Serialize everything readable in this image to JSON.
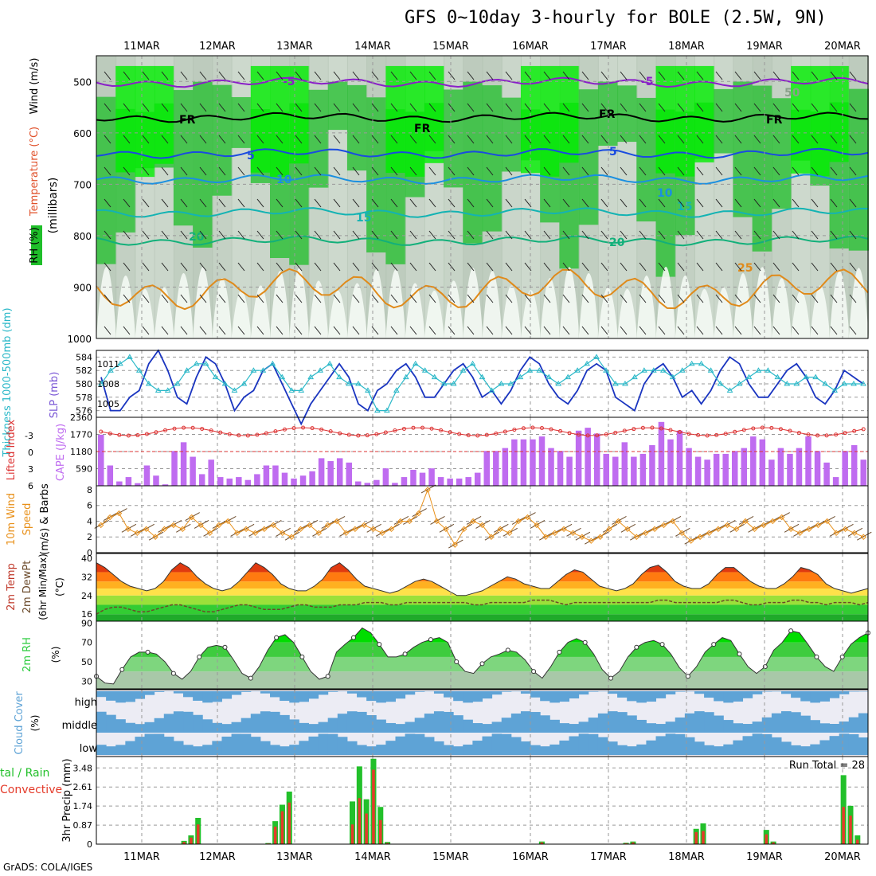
{
  "title": "GFS 0~10day 3-hourly for BOLE (2.5W, 9N)",
  "footer": "GrADS: COLA/IGES",
  "dates": [
    "11MAR",
    "12MAR",
    "13MAR",
    "14MAR",
    "15MAR",
    "16MAR",
    "17MAR",
    "18MAR",
    "19MAR",
    "20MAR"
  ],
  "colors": {
    "rh_green": "#1fbf2a",
    "rh_bright": "#00ee00",
    "rh_gray": "#b3c3b3",
    "cape": "#bf6cf0",
    "li": "#dd3333",
    "slp": "#1a35c0",
    "thick": "#2ab8c8",
    "wind": "#e8901a",
    "rh2m": "#2ecc40",
    "cloud": "#5ea3d6",
    "precip_total": "#22c02a",
    "precip_conv": "#e43b2a"
  },
  "chart_data": [
    {
      "type": "heatmap",
      "panel": "vertical-profile",
      "ylabel": "RH (%)  Temperature (°C)  Wind (m/s)",
      "yunit": "(millibars)",
      "yticks": [
        500,
        600,
        700,
        800,
        900,
        1000
      ],
      "ylim": [
        1000,
        450
      ],
      "isotherms": [
        {
          "label": "-5",
          "level_mb": 502
        },
        {
          "label": "FR",
          "level_mb": 570
        },
        {
          "label": "5",
          "level_mb": 640
        },
        {
          "label": "10",
          "level_mb": 690
        },
        {
          "label": "15",
          "level_mb": 755
        },
        {
          "label": "20",
          "level_mb": 810
        },
        {
          "label": "25",
          "level_mb": 905
        }
      ],
      "inline_labels": [
        "-5",
        "FR",
        "5",
        "10",
        "15",
        "20",
        "25",
        "50"
      ]
    },
    {
      "type": "line",
      "panel": "slp-thickness",
      "ylabel_left": "Thickness 1000-500mb (dm)",
      "ylabel_right": "SLP (mb)",
      "yticks_thickness": [
        576,
        578,
        580,
        582,
        584
      ],
      "yticks_slp": [
        1005,
        1008,
        1011
      ],
      "slp": [
        1009,
        1004,
        1004,
        1006,
        1007,
        1011,
        1013,
        1010,
        1006,
        1005,
        1009,
        1012,
        1011,
        1008,
        1004,
        1006,
        1007,
        1010,
        1011,
        1008,
        1005,
        1002,
        1005,
        1007,
        1009,
        1011,
        1009,
        1005,
        1004,
        1007,
        1008,
        1010,
        1011,
        1009,
        1006,
        1006,
        1008,
        1010,
        1011,
        1009,
        1006,
        1007,
        1005,
        1007,
        1010,
        1012,
        1011,
        1008,
        1006,
        1005,
        1007,
        1010,
        1011,
        1010,
        1006,
        1005,
        1004,
        1008,
        1010,
        1011,
        1009,
        1006,
        1007,
        1005,
        1007,
        1010,
        1012,
        1011,
        1008,
        1006,
        1006,
        1008,
        1010,
        1011,
        1009,
        1006,
        1005,
        1007,
        1010,
        1009,
        1008
      ],
      "thickness": [
        580,
        582,
        583,
        584,
        582,
        580,
        579,
        579,
        580,
        582,
        583,
        583,
        581,
        580,
        579,
        580,
        582,
        582,
        583,
        581,
        579,
        579,
        581,
        582,
        583,
        581,
        580,
        580,
        579,
        576,
        576,
        579,
        581,
        583,
        582,
        581,
        580,
        580,
        582,
        583,
        581,
        579,
        580,
        580,
        581,
        582,
        582,
        581,
        580,
        581,
        582,
        583,
        584,
        582,
        580,
        580,
        581,
        582,
        582,
        582,
        581,
        582,
        583,
        583,
        582,
        580,
        579,
        580,
        581,
        582,
        582,
        581,
        580,
        580,
        581,
        581,
        580,
        579,
        580,
        580,
        580
      ]
    },
    {
      "type": "bar",
      "panel": "lifted-index-cape",
      "ylabel_left": "Lifted Index",
      "ylabel_right": "CAPE (J/kg)",
      "yticks_li": [
        -3,
        0,
        3,
        6
      ],
      "yticks_cape": [
        590,
        1180,
        1770,
        2360
      ],
      "cape": [
        1760,
        700,
        150,
        300,
        90,
        700,
        350,
        50,
        1200,
        1500,
        1000,
        400,
        900,
        300,
        250,
        300,
        200,
        400,
        700,
        700,
        450,
        250,
        350,
        500,
        950,
        850,
        950,
        800,
        150,
        100,
        200,
        600,
        100,
        300,
        550,
        450,
        600,
        300,
        250,
        250,
        300,
        450,
        1200,
        1200,
        1300,
        1600,
        1600,
        1600,
        1700,
        1300,
        1200,
        1000,
        1900,
        2000,
        1800,
        1100,
        1000,
        1500,
        1000,
        1100,
        1400,
        2200,
        1600,
        1900,
        1300,
        1000,
        900,
        1100,
        1100,
        1200,
        1300,
        1700,
        1600,
        900,
        1300,
        1100,
        1300,
        1700,
        1200,
        800,
        300,
        1200,
        1400,
        900
      ]
    },
    {
      "type": "line",
      "panel": "10m-wind",
      "ylabel": "10m Wind Speed & Barbs (m/s)",
      "yticks": [
        0,
        2,
        4,
        6,
        8
      ],
      "values": [
        3.5,
        4.5,
        5,
        3,
        2.5,
        3,
        2,
        3,
        3.5,
        3,
        4.5,
        3.5,
        2.5,
        3.5,
        4,
        2.5,
        3,
        2.5,
        3,
        3.5,
        2.5,
        2,
        3,
        3.5,
        2.5,
        3.5,
        4,
        2.5,
        3,
        3.5,
        3,
        2.5,
        3,
        4,
        4,
        5,
        8,
        4,
        3,
        1,
        3,
        4,
        3.5,
        2,
        3,
        2.5,
        4,
        4.5,
        3.5,
        2,
        2.5,
        3,
        2.5,
        2,
        1.5,
        2,
        3,
        4,
        3,
        2,
        2.5,
        3,
        3.5,
        4,
        2.5,
        1.5,
        2,
        2.5,
        3,
        3.5,
        3,
        4,
        3,
        3.5,
        4,
        4.5,
        3,
        2.5,
        3,
        3.5,
        4,
        2.5,
        3,
        2.5,
        2
      ]
    },
    {
      "type": "area",
      "panel": "2m-temperature",
      "ylabel": "2m Temp 2m DewPt (6hr Min/Max) (°C)",
      "yticks": [
        16,
        24,
        32,
        40
      ],
      "temperature": [
        38,
        36,
        33,
        30,
        28,
        27,
        26,
        27,
        30,
        35,
        38,
        36,
        32,
        29,
        27,
        26,
        27,
        30,
        34,
        38,
        36,
        33,
        29,
        27,
        26,
        26,
        28,
        31,
        36,
        38,
        35,
        31,
        28,
        27,
        26,
        25,
        26,
        28,
        30,
        31,
        30,
        28,
        26,
        24,
        24,
        25,
        26,
        28,
        30,
        32,
        31,
        29,
        28,
        27,
        27,
        30,
        33,
        35,
        34,
        31,
        28,
        27,
        26,
        27,
        29,
        33,
        36,
        37,
        34,
        30,
        28,
        27,
        27,
        29,
        33,
        36,
        36,
        33,
        30,
        28,
        27,
        27,
        29,
        32,
        36,
        35,
        33,
        29,
        27,
        26,
        25,
        26,
        27
      ],
      "dewpoint": [
        16,
        18,
        19,
        19,
        18,
        17,
        17,
        18,
        19,
        20,
        20,
        19,
        18,
        17,
        17,
        18,
        19,
        20,
        20,
        19,
        18,
        18,
        18,
        19,
        20,
        20,
        19,
        19,
        19,
        20,
        20,
        20,
        21,
        21,
        21,
        20,
        20,
        21,
        21,
        21,
        21,
        21,
        21,
        21,
        21,
        20,
        20,
        21,
        21,
        21,
        21,
        21,
        22,
        22,
        22,
        21,
        20,
        21,
        21,
        21,
        21,
        21,
        21,
        21,
        21,
        21,
        21,
        22,
        22,
        21,
        21,
        21,
        21,
        21,
        21,
        22,
        22,
        21,
        20,
        20,
        21,
        21,
        21,
        22,
        22,
        21,
        21,
        20,
        21,
        21,
        21,
        20,
        21
      ]
    },
    {
      "type": "area",
      "panel": "2m-rh",
      "ylabel": "2m RH (%)",
      "yticks": [
        30,
        50,
        70,
        90
      ],
      "values": [
        35,
        28,
        27,
        42,
        55,
        60,
        60,
        58,
        50,
        38,
        32,
        40,
        55,
        65,
        67,
        65,
        52,
        38,
        33,
        45,
        62,
        75,
        78,
        70,
        55,
        40,
        32,
        35,
        60,
        68,
        75,
        85,
        80,
        68,
        55,
        55,
        58,
        65,
        70,
        73,
        75,
        70,
        50,
        40,
        38,
        48,
        55,
        58,
        62,
        60,
        52,
        40,
        33,
        45,
        60,
        70,
        74,
        70,
        58,
        42,
        33,
        40,
        55,
        65,
        70,
        72,
        68,
        58,
        44,
        35,
        45,
        60,
        68,
        75,
        72,
        58,
        45,
        38,
        45,
        62,
        70,
        82,
        80,
        68,
        55,
        45,
        40,
        55,
        68,
        75,
        80
      ]
    },
    {
      "type": "heatmap",
      "panel": "cloud-cover",
      "ylabel": "Cloud Cover (%)",
      "layers": [
        "high",
        "middle",
        "low"
      ]
    },
    {
      "type": "bar",
      "panel": "3hr-precip",
      "ylabel": "3hr Precip (mm)",
      "ylabel_left": "Total / Rain  Convective",
      "yticks": [
        0,
        0.87,
        1.74,
        2.61,
        3.48
      ],
      "run_total_label": "Run Total = 28",
      "total": [
        0,
        0,
        0,
        0,
        0,
        0,
        0,
        0,
        0,
        0,
        0,
        0,
        0.15,
        0.4,
        1.2,
        0,
        0,
        0,
        0,
        0,
        0,
        0,
        0,
        0,
        0.05,
        1.05,
        1.8,
        2.4,
        0,
        0,
        0,
        0,
        0,
        0,
        0,
        0,
        1.95,
        3.55,
        2.05,
        3.9,
        1.7,
        0.1,
        0,
        0,
        0,
        0,
        0,
        0,
        0,
        0,
        0,
        0,
        0,
        0,
        0,
        0,
        0,
        0,
        0,
        0,
        0,
        0,
        0,
        0.12,
        0,
        0,
        0,
        0,
        0,
        0,
        0,
        0,
        0,
        0,
        0,
        0.06,
        0.12,
        0,
        0,
        0,
        0,
        0,
        0,
        0,
        0,
        0.7,
        0.95,
        0,
        0,
        0,
        0,
        0,
        0,
        0,
        0,
        0.65,
        0.12,
        0,
        0,
        0,
        0,
        0,
        0,
        0,
        0,
        0,
        3.15,
        1.75,
        0.4,
        0
      ],
      "convective": [
        0,
        0,
        0,
        0,
        0,
        0,
        0,
        0,
        0,
        0,
        0,
        0,
        0.1,
        0.3,
        0.9,
        0,
        0,
        0,
        0,
        0,
        0,
        0,
        0,
        0,
        0.03,
        0.8,
        1.5,
        1.9,
        0,
        0,
        0,
        0,
        0,
        0,
        0,
        0,
        0.9,
        2.1,
        1.4,
        3.4,
        1.1,
        0.05,
        0,
        0,
        0,
        0,
        0,
        0,
        0,
        0,
        0,
        0,
        0,
        0,
        0,
        0,
        0,
        0,
        0,
        0,
        0,
        0,
        0,
        0.08,
        0,
        0,
        0,
        0,
        0,
        0,
        0,
        0,
        0,
        0,
        0,
        0.04,
        0.08,
        0,
        0,
        0,
        0,
        0,
        0,
        0,
        0,
        0.55,
        0.6,
        0,
        0,
        0,
        0,
        0,
        0,
        0,
        0,
        0.45,
        0.08,
        0,
        0,
        0,
        0,
        0,
        0,
        0,
        0,
        0,
        1.7,
        1.3,
        0.2,
        0
      ]
    }
  ]
}
